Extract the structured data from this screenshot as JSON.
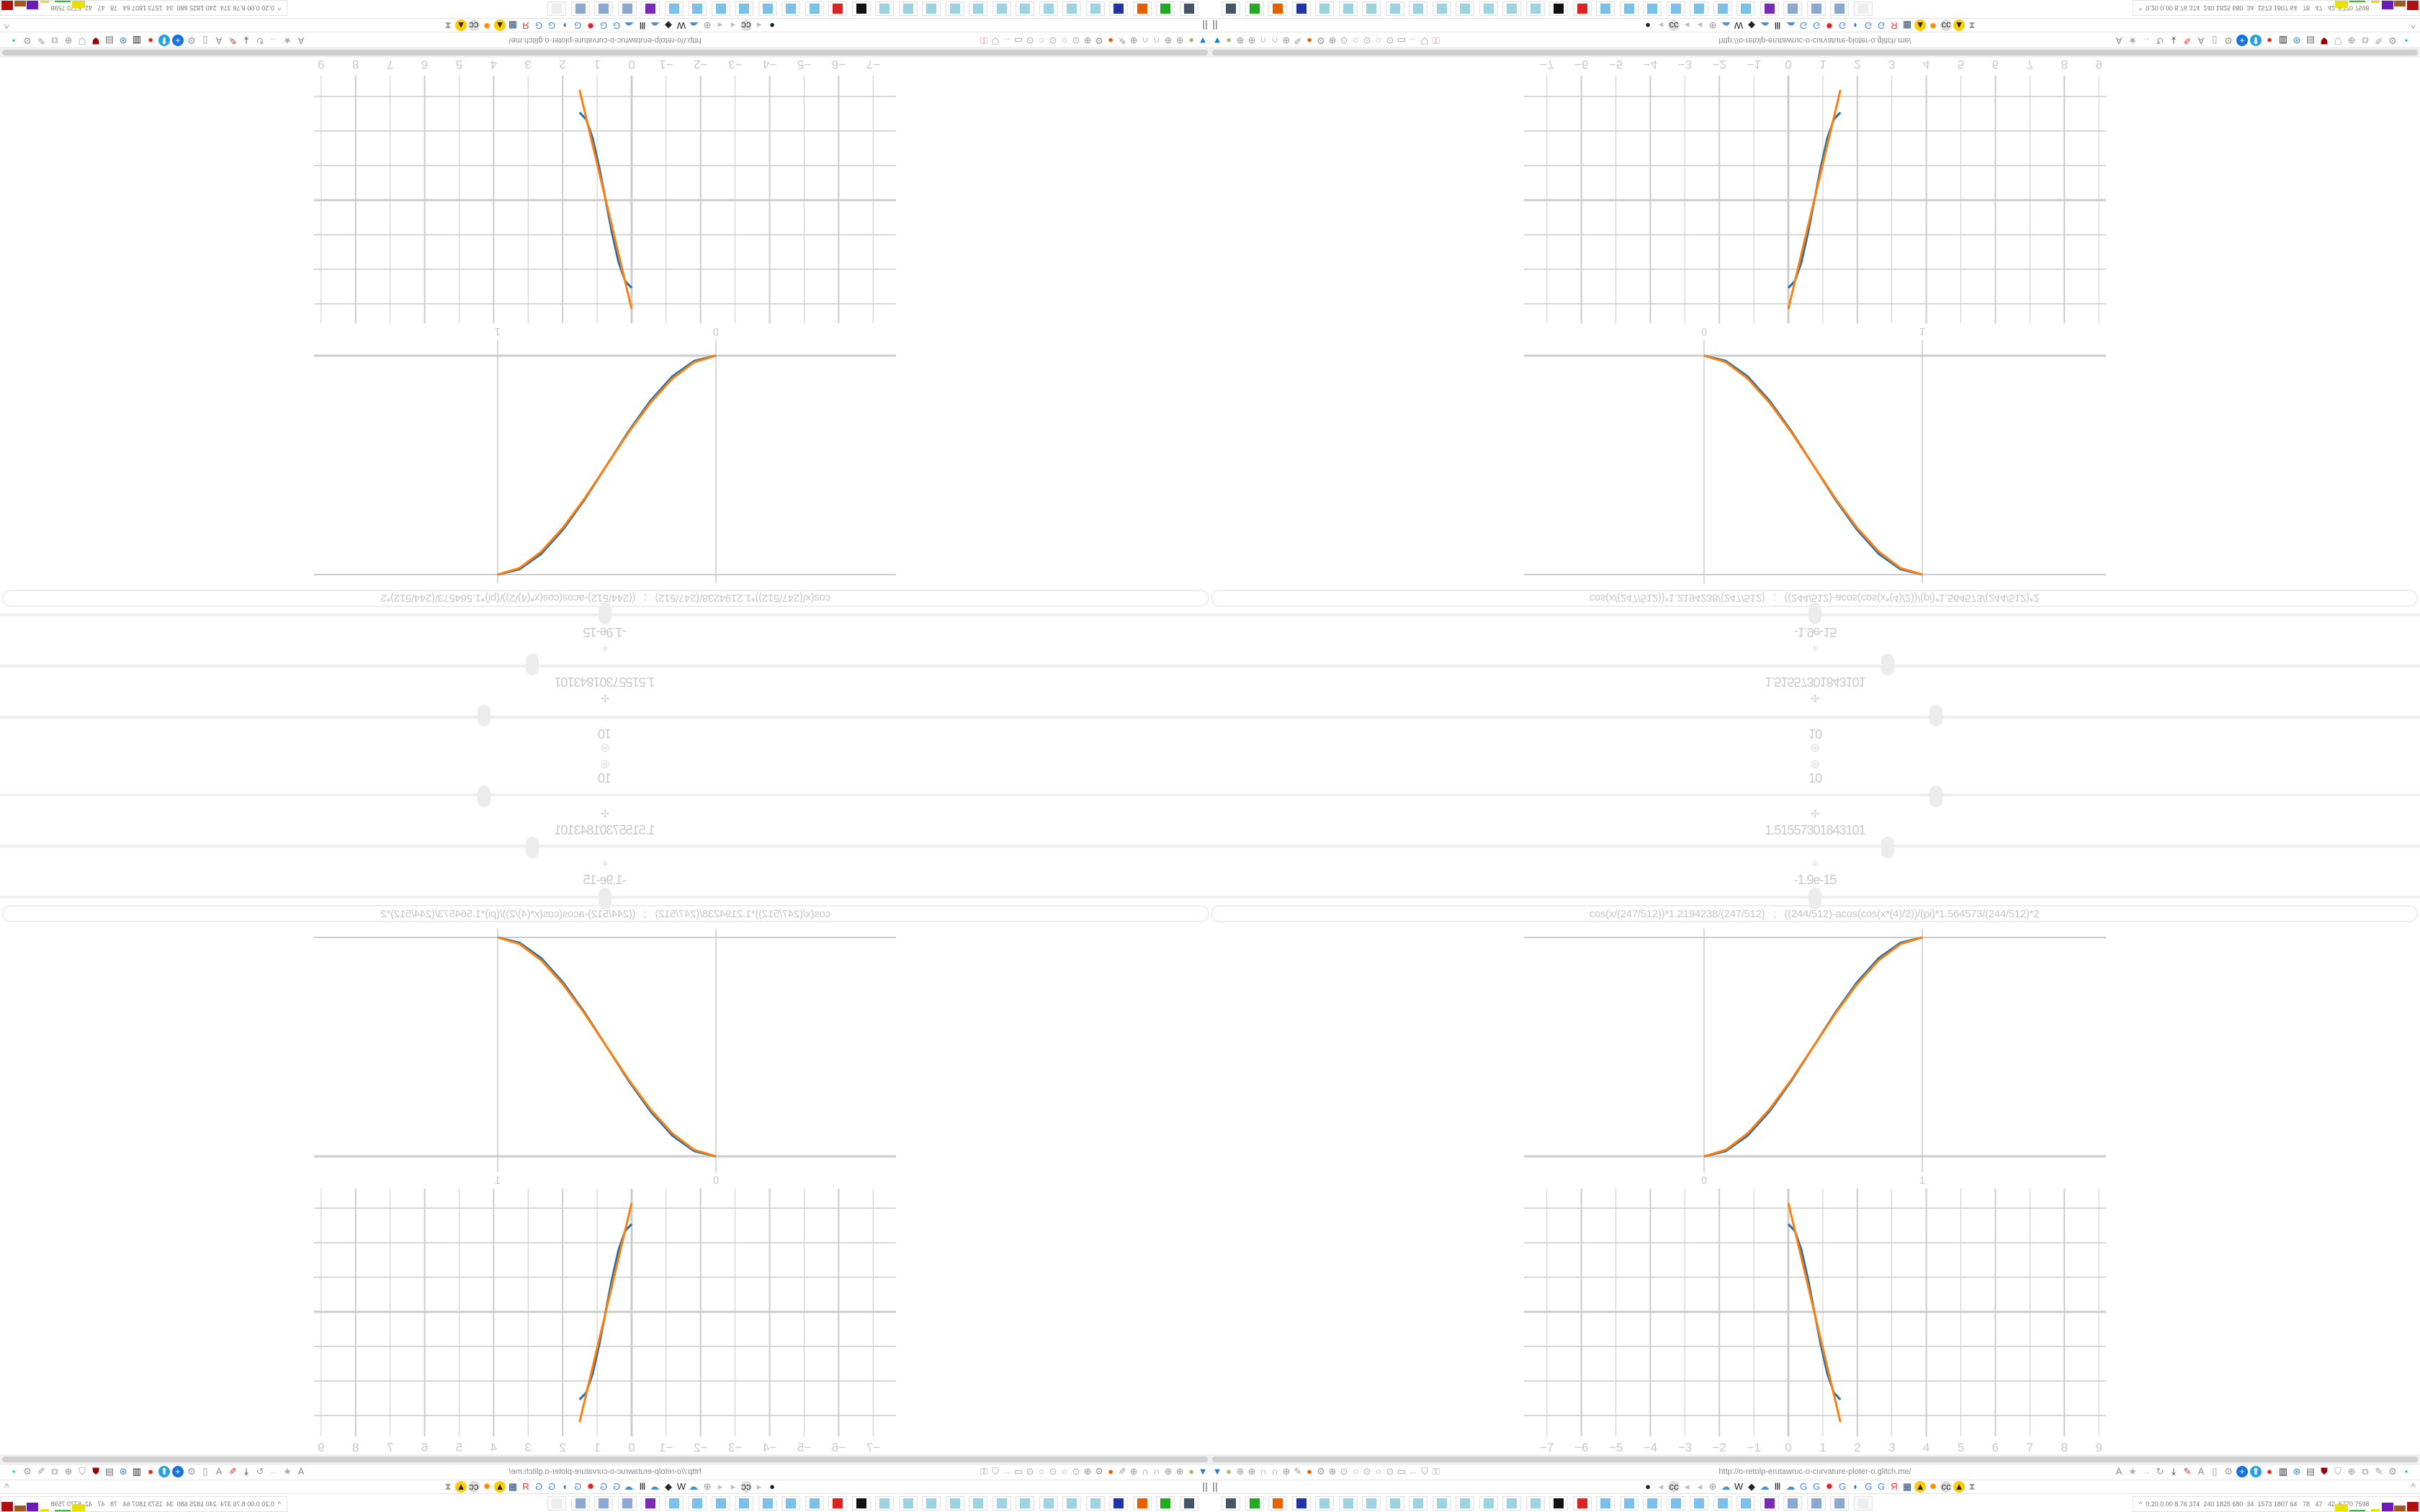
{
  "controls": {
    "slider1": {
      "icon": "target-icon",
      "value": "10",
      "position": 0.6
    },
    "slider2": {
      "icon": "move-icon",
      "value": "1.51557301843101",
      "position": 0.56
    },
    "slider3": {
      "icon": "split-icon",
      "value": "-1.9e-15",
      "position": 0.5
    },
    "formula": "cos(x/(247/512))*1.2194238/(247/512)   ;   ((244/512)-acos(cos(x*(4)/2))/(pi)*1.564573/(244/512)*2"
  },
  "colors": {
    "series_blue": "#1f6fae",
    "series_orange": "#ff7f0e",
    "grid": "#cccccc",
    "text": "#c8c8c8"
  },
  "chart_data": [
    {
      "type": "line",
      "xlim": [
        0,
        1
      ],
      "ylim": [
        0,
        1
      ],
      "x_ticks": [
        "0",
        "1"
      ],
      "grid": true,
      "series": [
        {
          "color": "#1f6fae",
          "x": [
            0,
            0.1,
            0.2,
            0.3,
            0.4,
            0.5,
            0.6,
            0.7,
            0.8,
            0.9,
            1
          ],
          "y": [
            0,
            0.024,
            0.095,
            0.206,
            0.345,
            0.5,
            0.655,
            0.794,
            0.905,
            0.976,
            1
          ]
        },
        {
          "color": "#ff7f0e",
          "x": [
            0,
            0.1,
            0.2,
            0.3,
            0.4,
            0.5,
            0.6,
            0.7,
            0.8,
            0.9,
            1
          ],
          "y": [
            0,
            0.03,
            0.105,
            0.215,
            0.35,
            0.5,
            0.65,
            0.785,
            0.895,
            0.97,
            1
          ]
        }
      ]
    },
    {
      "type": "line",
      "xlim": [
        -7.4,
        9.2
      ],
      "ylim": [
        -3.6,
        3.6
      ],
      "x_ticks": [
        "−7",
        "−6",
        "−5",
        "−4",
        "−3",
        "−2",
        "−1",
        "0",
        "1",
        "2",
        "3",
        "4",
        "5",
        "6",
        "7",
        "8",
        "9"
      ],
      "grid": true,
      "series": [
        {
          "color": "#1f6fae",
          "x": [
            0,
            0.19,
            0.38,
            0.57,
            0.76,
            0.94,
            1.13,
            1.32,
            1.51
          ],
          "y": [
            2.54,
            2.34,
            1.79,
            0.95,
            -0.03,
            -0.95,
            -1.79,
            -2.34,
            -2.54
          ]
        },
        {
          "color": "#ff7f0e",
          "x": [
            0,
            0.75,
            1.51
          ],
          "y": [
            3.15,
            0,
            -3.19
          ]
        }
      ]
    }
  ],
  "browser": {
    "url": "http://o-retolp-erutawruc-o-curvature-ploter-o.glitch.me/",
    "pause_label": "||",
    "collapse_label": "^",
    "stats_label": "^",
    "stats": "0.20 0.00 8.76 374  240 1825 680  34  1573 1807 64   78   47   42  5770 7598",
    "toolbar_left_icons": [
      "filter-icon",
      "addon-icon",
      "globe-icon",
      "globe-icon",
      "headphones-icon",
      "headphones-icon",
      "globe-icon",
      "wrench-icon",
      "firefox-icon",
      "gear-icon",
      "globe-icon",
      "dot-icon",
      "circle-icon",
      "dot-icon",
      "circle-icon",
      "dot-icon",
      "folder-icon",
      "back-arrow-icon",
      "shield-icon",
      "lock-icon"
    ],
    "toolbar_right_icons": [
      "translate-icon",
      "star-icon",
      "forward-arrow-icon",
      "reload-icon",
      "download-icon",
      "pen-icon",
      "translate-icon",
      "mouse-icon",
      "gear-icon",
      "plus-icon",
      "upload-icon",
      "record-icon",
      "trash-icon",
      "share-icon",
      "clipboard-icon",
      "ublock-icon",
      "shield-icon",
      "globe-icon",
      "puzzle-icon",
      "wrench-icon",
      "gear-icon",
      "status-dot-icon"
    ],
    "bookmark_icons": [
      "clock-icon",
      "speaker-icon",
      "cc-icon",
      "speaker-icon",
      "speaker-icon",
      "globe-icon",
      "cloud-icon",
      "wikipedia-icon",
      "chart-icon",
      "cloud-icon",
      "columns-icon",
      "cloud-icon",
      "google-icon",
      "google-icon",
      "gear-red-icon",
      "google-icon",
      "drop-icon",
      "google-icon",
      "google-icon",
      "yandex-icon",
      "grid-icon",
      "photo-icon",
      "sun-icon",
      "cc-icon",
      "photo-icon",
      "hourglass-icon"
    ],
    "taskbar_icons": [
      "monitor-app",
      "terminal-app",
      "firefox-app",
      "floppy-app",
      "notepad-app",
      "notepad-app",
      "notepad-app",
      "notepad-app",
      "notepad-app",
      "notepad-app",
      "notepad-app",
      "notepad-app",
      "notepad-app",
      "notepad-app",
      "inkscape-app",
      "gear-red-app",
      "calculator-app",
      "calculator-app",
      "calculator-app",
      "calculator-app",
      "calculator-app",
      "calculator-app",
      "calculator-app",
      "podcast-app",
      "file-app",
      "file-app",
      "file-app",
      "blank-app"
    ]
  }
}
